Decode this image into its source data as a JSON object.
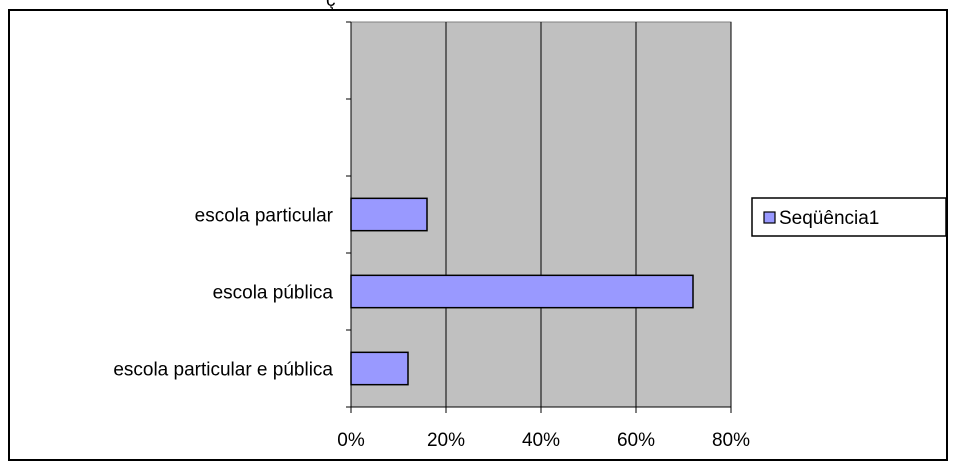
{
  "chart_data": {
    "type": "bar",
    "orientation": "horizontal",
    "categories": [
      "escola particular e pública",
      "escola pública",
      "escola particular"
    ],
    "series": [
      {
        "name": "Seqüência1",
        "values": [
          0.12,
          0.72,
          0.16
        ]
      }
    ],
    "xlim": [
      0,
      0.8
    ],
    "x_ticks": [
      0,
      0.2,
      0.4,
      0.6,
      0.8
    ],
    "x_tick_labels": [
      "0%",
      "20%",
      "40%",
      "60%",
      "80%"
    ],
    "empty_category_slots": 2,
    "grid": "vertical",
    "legend_position": "right",
    "colors": {
      "plot_area": "#c0c0c0",
      "bar_fill": "#9999ff",
      "bar_stroke": "#000000",
      "gridline": "#000000"
    }
  },
  "top_text_fragment": "ç"
}
